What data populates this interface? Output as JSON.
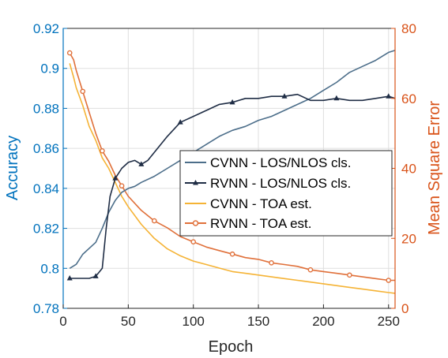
{
  "chart_data": {
    "type": "line",
    "title": "",
    "xlabel": "Epoch",
    "ylabel_left": "Accuracy",
    "ylabel_right": "Mean Square Error",
    "xlim": [
      0,
      255
    ],
    "ylim_left": [
      0.78,
      0.92
    ],
    "ylim_right": [
      0,
      80
    ],
    "xticks": [
      "0",
      "50",
      "100",
      "150",
      "200",
      "250"
    ],
    "yticks_left": [
      "0.78",
      "0.8",
      "0.82",
      "0.84",
      "0.86",
      "0.88",
      "0.9",
      "0.92"
    ],
    "yticks_right": [
      "0",
      "20",
      "40",
      "60",
      "80"
    ],
    "grid": true,
    "legend_position": "center-right",
    "colors": {
      "left_axis": "#0072BD",
      "right_axis": "#D95319",
      "cvnn_cls": "#4C6E8A",
      "rvnn_cls": "#1F2D45",
      "cvnn_toa": "#F5B335",
      "rvnn_toa": "#E0703A"
    },
    "series": [
      {
        "name": "CVNN - LOS/NLOS cls.",
        "axis": "left",
        "marker": "none",
        "x": [
          5,
          10,
          15,
          20,
          25,
          30,
          35,
          40,
          45,
          50,
          55,
          60,
          70,
          80,
          90,
          100,
          110,
          120,
          130,
          140,
          150,
          160,
          170,
          180,
          190,
          200,
          210,
          220,
          230,
          240,
          250,
          255
        ],
        "y": [
          0.8,
          0.802,
          0.807,
          0.81,
          0.813,
          0.82,
          0.828,
          0.834,
          0.838,
          0.84,
          0.841,
          0.843,
          0.846,
          0.85,
          0.854,
          0.858,
          0.862,
          0.866,
          0.869,
          0.871,
          0.874,
          0.876,
          0.879,
          0.882,
          0.885,
          0.889,
          0.893,
          0.898,
          0.901,
          0.904,
          0.908,
          0.909
        ]
      },
      {
        "name": "RVNN - LOS/NLOS cls.",
        "axis": "left",
        "marker": "triangle",
        "x": [
          5,
          10,
          15,
          20,
          25,
          30,
          33,
          36,
          40,
          45,
          50,
          55,
          60,
          65,
          70,
          80,
          90,
          100,
          110,
          120,
          130,
          140,
          150,
          160,
          170,
          180,
          190,
          200,
          210,
          220,
          230,
          240,
          250,
          255
        ],
        "y": [
          0.795,
          0.795,
          0.795,
          0.795,
          0.796,
          0.8,
          0.82,
          0.836,
          0.845,
          0.85,
          0.853,
          0.854,
          0.852,
          0.854,
          0.858,
          0.866,
          0.873,
          0.876,
          0.879,
          0.882,
          0.883,
          0.885,
          0.885,
          0.886,
          0.886,
          0.887,
          0.884,
          0.884,
          0.885,
          0.884,
          0.884,
          0.885,
          0.886,
          0.885
        ]
      },
      {
        "name": "CVNN - TOA est.",
        "axis": "right",
        "marker": "none",
        "x": [
          5,
          8,
          10,
          15,
          20,
          25,
          30,
          35,
          40,
          45,
          50,
          60,
          70,
          80,
          90,
          100,
          110,
          120,
          130,
          140,
          150,
          160,
          170,
          180,
          190,
          200,
          210,
          220,
          230,
          240,
          250,
          255
        ],
        "y": [
          70,
          66,
          63,
          58,
          52,
          48,
          43,
          40,
          36,
          32,
          29,
          24,
          20,
          17,
          15,
          13.5,
          12.5,
          11.5,
          10.5,
          10,
          9.5,
          9,
          8.5,
          8,
          7.5,
          7,
          6.5,
          6,
          5.5,
          5,
          4.5,
          4.3
        ]
      },
      {
        "name": "RVNN - TOA est.",
        "axis": "right",
        "marker": "circle",
        "x": [
          5,
          8,
          10,
          15,
          20,
          25,
          30,
          35,
          40,
          45,
          50,
          60,
          70,
          80,
          90,
          100,
          110,
          120,
          130,
          140,
          150,
          160,
          170,
          180,
          190,
          200,
          210,
          220,
          230,
          240,
          250,
          255
        ],
        "y": [
          73,
          71,
          68,
          62,
          56,
          50,
          45,
          42,
          38,
          35,
          32,
          28,
          25,
          23,
          20.5,
          19,
          17.5,
          16.5,
          15.5,
          14.5,
          14,
          13,
          12.5,
          12,
          11,
          10.5,
          10,
          9.5,
          9,
          8.5,
          8,
          8
        ]
      }
    ]
  }
}
